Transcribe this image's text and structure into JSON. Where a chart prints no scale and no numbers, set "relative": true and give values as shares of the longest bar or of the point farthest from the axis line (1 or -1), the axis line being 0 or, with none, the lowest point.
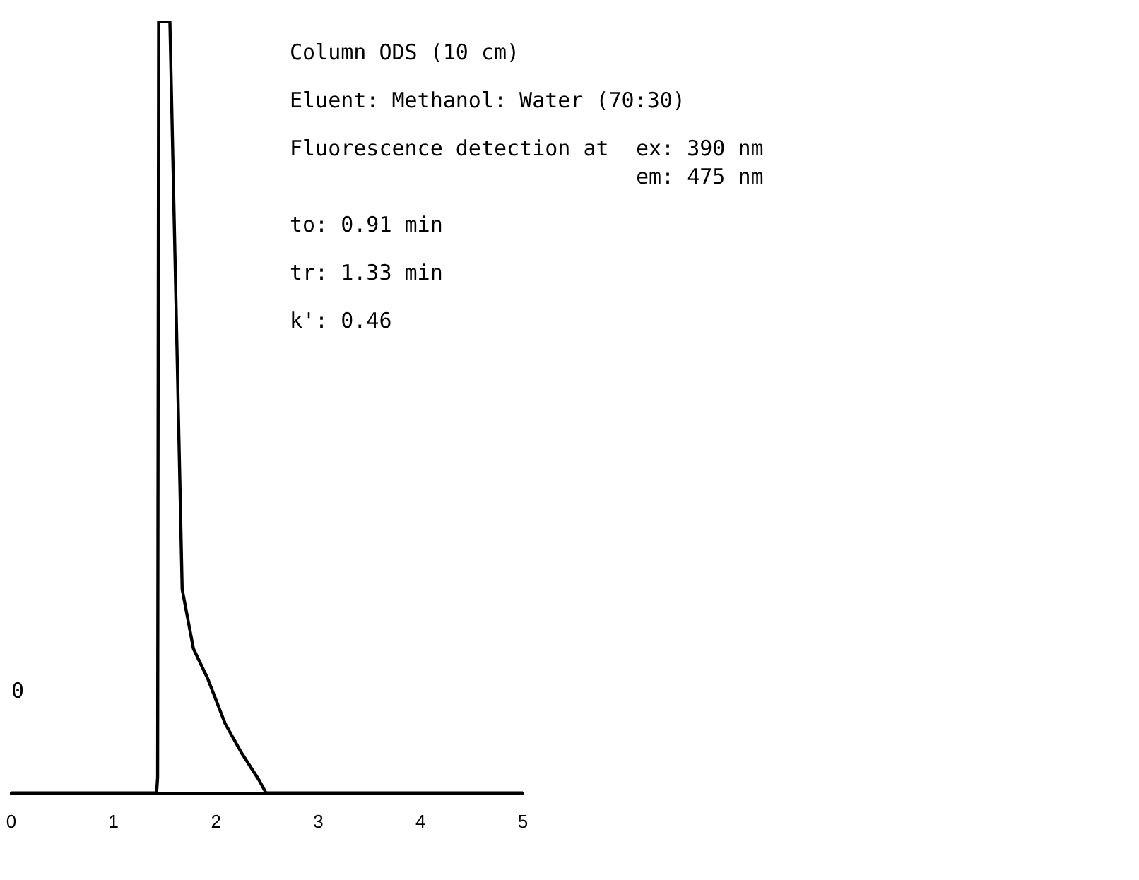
{
  "chart_data": {
    "type": "line",
    "relative": true,
    "x": [
      0,
      1.42,
      1.43,
      1.44,
      1.55,
      1.61,
      1.67,
      1.78,
      1.92,
      2.09,
      2.25,
      2.42,
      2.49,
      5
    ],
    "series": [
      {
        "color": "#000000",
        "values": [
          0,
          0,
          0.02,
          1,
          1,
          0.633,
          0.264,
          0.187,
          0.148,
          0.09,
          0.052,
          0.017,
          0,
          0
        ]
      }
    ],
    "xlim": [
      0,
      5
    ],
    "xticks": [
      0,
      1,
      2,
      3,
      4,
      5
    ],
    "tick_labels": "x",
    "grid": false,
    "legend": false,
    "marker": "none",
    "line_style": "solid",
    "annotations": [
      "Column ODS (10 cm)",
      "Eluent: Methanol: Water (70:30)",
      "Fluorescence detection at",
      "ex: 390 nm",
      "em: 475 nm",
      "to: 0.91 min",
      "tr: 1.33 min",
      "k': 0.46",
      "0"
    ]
  }
}
